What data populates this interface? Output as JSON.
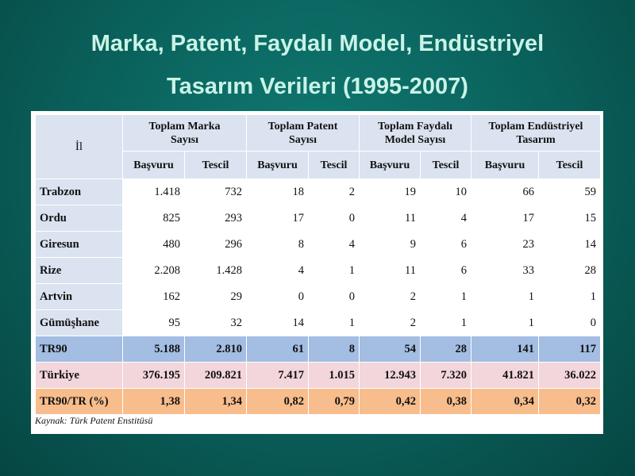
{
  "title": {
    "line1": "Marka, Patent, Faydalı Model, Endüstriyel",
    "line2": "Tasarım Verileri (1995-2007)"
  },
  "table": {
    "col_il": "İl",
    "groups": [
      "Toplam Marka Sayısı",
      "Toplam Patent Sayısı",
      "Toplam Faydalı Model Sayısı",
      "Toplam Endüstriyel Tasarım"
    ],
    "groups_lines": [
      [
        "Toplam Marka",
        "Sayısı"
      ],
      [
        "Toplam Patent",
        "Sayısı"
      ],
      [
        "Toplam Faydalı",
        "Model Sayısı"
      ],
      [
        "Toplam Endüstriyel",
        "Tasarım"
      ]
    ],
    "sub_headers": [
      "Başvuru",
      "Tescil",
      "Başvuru",
      "Tescil",
      "Başvuru",
      "Tescil",
      "Başvuru",
      "Tescil"
    ],
    "rows": [
      {
        "name": "Trabzon",
        "values": [
          "1.418",
          "732",
          "18",
          "2",
          "19",
          "10",
          "66",
          "59"
        ]
      },
      {
        "name": "Ordu",
        "values": [
          "825",
          "293",
          "17",
          "0",
          "11",
          "4",
          "17",
          "15"
        ]
      },
      {
        "name": "Giresun",
        "values": [
          "480",
          "296",
          "8",
          "4",
          "9",
          "6",
          "23",
          "14"
        ]
      },
      {
        "name": "Rize",
        "values": [
          "2.208",
          "1.428",
          "4",
          "1",
          "11",
          "6",
          "33",
          "28"
        ]
      },
      {
        "name": "Artvin",
        "values": [
          "162",
          "29",
          "0",
          "0",
          "2",
          "1",
          "1",
          "1"
        ]
      },
      {
        "name": "Gümüşhane",
        "values": [
          "95",
          "32",
          "14",
          "1",
          "2",
          "1",
          "1",
          "0"
        ]
      }
    ],
    "totals": [
      {
        "name": "TR90",
        "values": [
          "5.188",
          "2.810",
          "61",
          "8",
          "54",
          "28",
          "141",
          "117"
        ]
      },
      {
        "name": "Türkiye",
        "values": [
          "376.195",
          "209.821",
          "7.417",
          "1.015",
          "12.943",
          "7.320",
          "41.821",
          "36.022"
        ]
      },
      {
        "name": "TR90/TR (%)",
        "values": [
          "1,38",
          "1,34",
          "0,82",
          "0,79",
          "0,42",
          "0,38",
          "0,34",
          "0,32"
        ]
      }
    ]
  },
  "source": "Kaynak: Türk Patent Enstitüsü",
  "colors": {
    "background": "#0a5f5a",
    "title": "#c9f3e6",
    "header_fill": "#dbe3f0",
    "tr90_fill": "#a3bde3",
    "turkiye_fill": "#f2d6dc",
    "ratio_fill": "#f8bd8c"
  }
}
